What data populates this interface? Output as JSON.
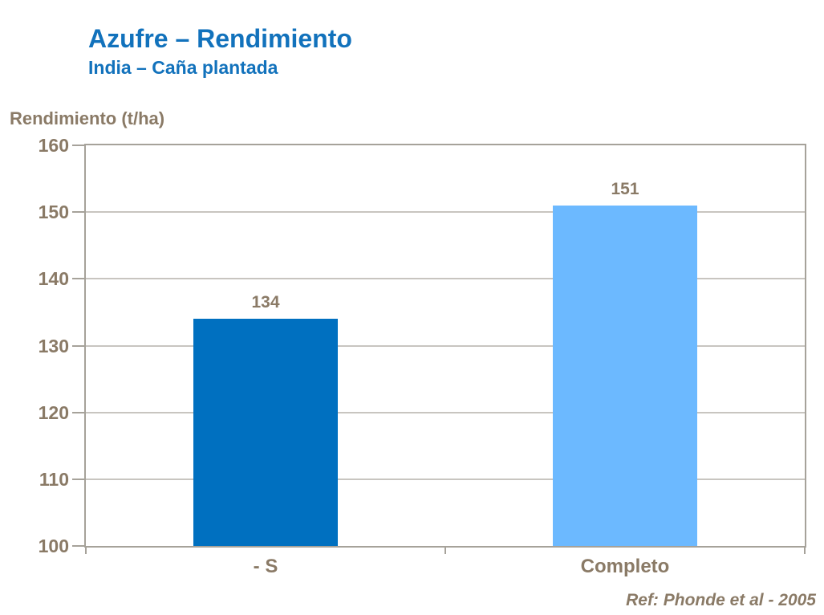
{
  "chart_data": {
    "type": "bar",
    "title": "Azufre – Rendimiento",
    "subtitle": "India – Caña plantada",
    "ylabel": "Rendimiento (t/ha)",
    "xlabel": "",
    "categories": [
      "- S",
      "Completo"
    ],
    "values": [
      134,
      151
    ],
    "data_labels": [
      "134",
      "151"
    ],
    "bar_colors": [
      "#0070C0",
      "#6CB9FF"
    ],
    "ylim": [
      100,
      160
    ],
    "yticks": [
      100,
      110,
      120,
      130,
      140,
      150,
      160
    ],
    "grid": "horizontal gridlines every 10 units",
    "legend_position": "none"
  },
  "footer": {
    "reference": "Ref: Phonde et al - 2005"
  },
  "colors": {
    "title_blue": "#1272BC",
    "axis_text_brown": "#8A7A66",
    "bar_dark_blue": "#0070C0",
    "bar_light_blue": "#6CB9FF",
    "plot_border_gray": "#A6A29A",
    "gridline_gray": "#C8C5C0",
    "background": "#FFFFFF"
  }
}
